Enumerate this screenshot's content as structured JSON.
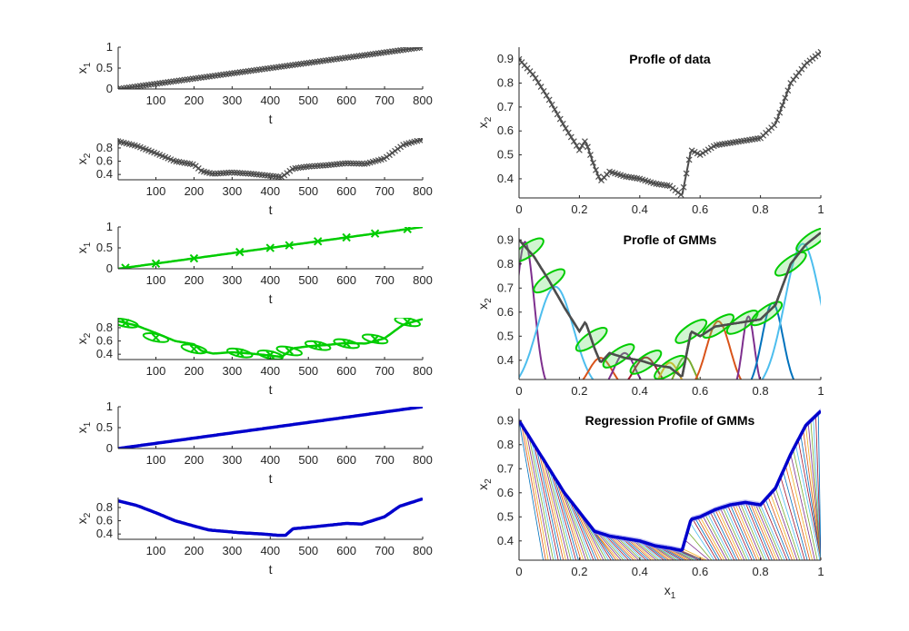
{
  "colors": {
    "data": "#4d4d4d",
    "gmm": "#00cc00",
    "gmm_fill": "#66dd66",
    "regression": "#0000cc",
    "band": "#9999ee",
    "axis": "#262626"
  },
  "chart_data": [
    {
      "type": "line",
      "xlabel": "t",
      "ylabel": "x_1",
      "xlim": [
        1,
        800
      ],
      "ylim": [
        0,
        1
      ],
      "xticks": [
        100,
        200,
        300,
        400,
        500,
        600,
        700,
        800
      ],
      "yticks": [
        0,
        0.5,
        1
      ],
      "series": [
        {
          "values_x": [
            1,
            800
          ],
          "values_y": [
            0,
            1
          ],
          "marker": "x"
        }
      ]
    },
    {
      "type": "line",
      "xlabel": "t",
      "ylabel": "x_2",
      "xlim": [
        1,
        800
      ],
      "ylim": [
        0.32,
        0.95
      ],
      "xticks": [
        100,
        200,
        300,
        400,
        500,
        600,
        700,
        800
      ],
      "yticks": [
        0.4,
        0.6,
        0.8
      ],
      "series": [
        {
          "values_x": [
            1,
            50,
            100,
            150,
            200,
            220,
            250,
            300,
            350,
            400,
            430,
            460,
            500,
            550,
            600,
            650,
            700,
            750,
            800
          ],
          "values_y": [
            0.9,
            0.83,
            0.72,
            0.6,
            0.55,
            0.45,
            0.41,
            0.43,
            0.41,
            0.38,
            0.36,
            0.49,
            0.52,
            0.54,
            0.57,
            0.56,
            0.64,
            0.85,
            0.93
          ],
          "marker": "x"
        }
      ]
    },
    {
      "type": "line",
      "xlabel": "t",
      "ylabel": "x_1",
      "xlim": [
        1,
        800
      ],
      "ylim": [
        0,
        1
      ],
      "xticks": [
        100,
        200,
        300,
        400,
        500,
        600,
        700,
        800
      ],
      "yticks": [
        0,
        0.5,
        1
      ],
      "series": [
        {
          "values_x": [
            1,
            800
          ],
          "values_y": [
            0,
            1
          ],
          "centers_x": [
            20,
            100,
            200,
            320,
            400,
            450,
            525,
            600,
            675,
            760
          ]
        }
      ]
    },
    {
      "type": "line",
      "xlabel": "t",
      "ylabel": "x_2",
      "xlim": [
        1,
        800
      ],
      "ylim": [
        0.32,
        0.95
      ],
      "xticks": [
        100,
        200,
        300,
        400,
        500,
        600,
        700,
        800
      ],
      "yticks": [
        0.4,
        0.6,
        0.8
      ],
      "series": [
        {
          "values_x": [
            1,
            50,
            100,
            150,
            200,
            220,
            250,
            300,
            350,
            400,
            430,
            460,
            500,
            550,
            600,
            650,
            700,
            750,
            800
          ],
          "values_y": [
            0.9,
            0.83,
            0.72,
            0.6,
            0.55,
            0.45,
            0.41,
            0.43,
            0.41,
            0.38,
            0.36,
            0.49,
            0.52,
            0.54,
            0.57,
            0.56,
            0.64,
            0.85,
            0.93
          ],
          "centers_x": [
            20,
            100,
            200,
            320,
            400,
            450,
            525,
            600,
            675,
            760
          ],
          "centers_y": [
            0.87,
            0.65,
            0.48,
            0.42,
            0.39,
            0.45,
            0.53,
            0.56,
            0.63,
            0.89
          ]
        }
      ]
    },
    {
      "type": "line",
      "xlabel": "t",
      "ylabel": "x_1",
      "xlim": [
        1,
        800
      ],
      "ylim": [
        0,
        1
      ],
      "xticks": [
        100,
        200,
        300,
        400,
        500,
        600,
        700,
        800
      ],
      "yticks": [
        0,
        0.5,
        1
      ],
      "series": [
        {
          "values_x": [
            1,
            800
          ],
          "values_y": [
            0,
            1
          ]
        }
      ]
    },
    {
      "type": "line",
      "xlabel": "t",
      "ylabel": "x_2",
      "xlim": [
        1,
        800
      ],
      "ylim": [
        0.32,
        0.95
      ],
      "xticks": [
        100,
        200,
        300,
        400,
        500,
        600,
        700,
        800
      ],
      "yticks": [
        0.4,
        0.6,
        0.8
      ],
      "series": [
        {
          "values_x": [
            1,
            50,
            100,
            150,
            200,
            240,
            280,
            320,
            380,
            420,
            440,
            460,
            500,
            550,
            600,
            640,
            700,
            740,
            800
          ],
          "values_y": [
            0.9,
            0.83,
            0.72,
            0.6,
            0.52,
            0.46,
            0.44,
            0.42,
            0.4,
            0.38,
            0.38,
            0.48,
            0.5,
            0.53,
            0.56,
            0.55,
            0.66,
            0.82,
            0.93
          ]
        }
      ]
    },
    {
      "type": "line",
      "title": "Profle of data",
      "xlabel": "",
      "ylabel": "x_2",
      "xlim": [
        0,
        1
      ],
      "ylim": [
        0.32,
        0.95
      ],
      "xticks": [
        0,
        0.2,
        0.4,
        0.6,
        0.8,
        1
      ],
      "yticks": [
        0.4,
        0.5,
        0.6,
        0.7,
        0.8,
        0.9
      ],
      "series": [
        {
          "values_x": [
            0,
            0.05,
            0.1,
            0.15,
            0.2,
            0.22,
            0.25,
            0.27,
            0.3,
            0.35,
            0.4,
            0.45,
            0.5,
            0.54,
            0.57,
            0.6,
            0.65,
            0.7,
            0.75,
            0.8,
            0.85,
            0.9,
            0.95,
            1
          ],
          "values_y": [
            0.9,
            0.83,
            0.73,
            0.62,
            0.52,
            0.56,
            0.45,
            0.39,
            0.43,
            0.41,
            0.4,
            0.38,
            0.37,
            0.33,
            0.52,
            0.5,
            0.54,
            0.55,
            0.56,
            0.57,
            0.63,
            0.8,
            0.88,
            0.93
          ],
          "marker": "x"
        }
      ]
    },
    {
      "type": "line",
      "title": "Profle of GMMs",
      "xlabel": "",
      "ylabel": "x_2",
      "xlim": [
        0,
        1
      ],
      "ylim": [
        0.32,
        0.95
      ],
      "xticks": [
        0,
        0.2,
        0.4,
        0.6,
        0.8,
        1
      ],
      "yticks": [
        0.4,
        0.5,
        0.6,
        0.7,
        0.8,
        0.9
      ],
      "series": [
        {
          "values_x": [
            0,
            0.05,
            0.1,
            0.15,
            0.2,
            0.22,
            0.25,
            0.27,
            0.3,
            0.35,
            0.4,
            0.45,
            0.5,
            0.54,
            0.57,
            0.6,
            0.65,
            0.7,
            0.75,
            0.8,
            0.85,
            0.9,
            0.95,
            1
          ],
          "values_y": [
            0.9,
            0.83,
            0.73,
            0.62,
            0.52,
            0.56,
            0.45,
            0.39,
            0.43,
            0.41,
            0.4,
            0.38,
            0.37,
            0.33,
            0.52,
            0.5,
            0.54,
            0.55,
            0.56,
            0.57,
            0.63,
            0.8,
            0.88,
            0.93
          ]
        }
      ],
      "gaussian_components": [
        {
          "mu": 0.02,
          "sigma": 0.03,
          "color": "#7e2f8e"
        },
        {
          "mu": 0.12,
          "sigma": 0.06,
          "color": "#4dbeee"
        },
        {
          "mu": 0.27,
          "sigma": 0.04,
          "color": "#d95319"
        },
        {
          "mu": 0.35,
          "sigma": 0.035,
          "color": "#7e2f8e"
        },
        {
          "mu": 0.42,
          "sigma": 0.04,
          "color": "#a2142f"
        },
        {
          "mu": 0.5,
          "sigma": 0.03,
          "color": "#edb120"
        },
        {
          "mu": 0.55,
          "sigma": 0.03,
          "color": "#77ac30"
        },
        {
          "mu": 0.66,
          "sigma": 0.04,
          "color": "#d95319"
        },
        {
          "mu": 0.76,
          "sigma": 0.02,
          "color": "#7e2f8e"
        },
        {
          "mu": 0.84,
          "sigma": 0.035,
          "color": "#0072bd"
        },
        {
          "mu": 0.94,
          "sigma": 0.06,
          "color": "#4dbeee"
        }
      ]
    },
    {
      "type": "line",
      "title": "Regression Profile of GMMs",
      "xlabel": "x_1",
      "ylabel": "x_2",
      "xlim": [
        0,
        1
      ],
      "ylim": [
        0.32,
        0.95
      ],
      "xticks": [
        0,
        0.2,
        0.4,
        0.6,
        0.8,
        1
      ],
      "yticks": [
        0.4,
        0.5,
        0.6,
        0.7,
        0.8,
        0.9
      ],
      "series": [
        {
          "values_x": [
            0,
            0.05,
            0.1,
            0.15,
            0.2,
            0.25,
            0.3,
            0.35,
            0.4,
            0.45,
            0.5,
            0.54,
            0.57,
            0.6,
            0.65,
            0.7,
            0.75,
            0.8,
            0.85,
            0.9,
            0.95,
            1
          ],
          "values_y": [
            0.9,
            0.8,
            0.7,
            0.6,
            0.52,
            0.44,
            0.42,
            0.41,
            0.4,
            0.38,
            0.37,
            0.36,
            0.49,
            0.5,
            0.53,
            0.55,
            0.56,
            0.55,
            0.62,
            0.76,
            0.88,
            0.94
          ]
        }
      ]
    }
  ]
}
